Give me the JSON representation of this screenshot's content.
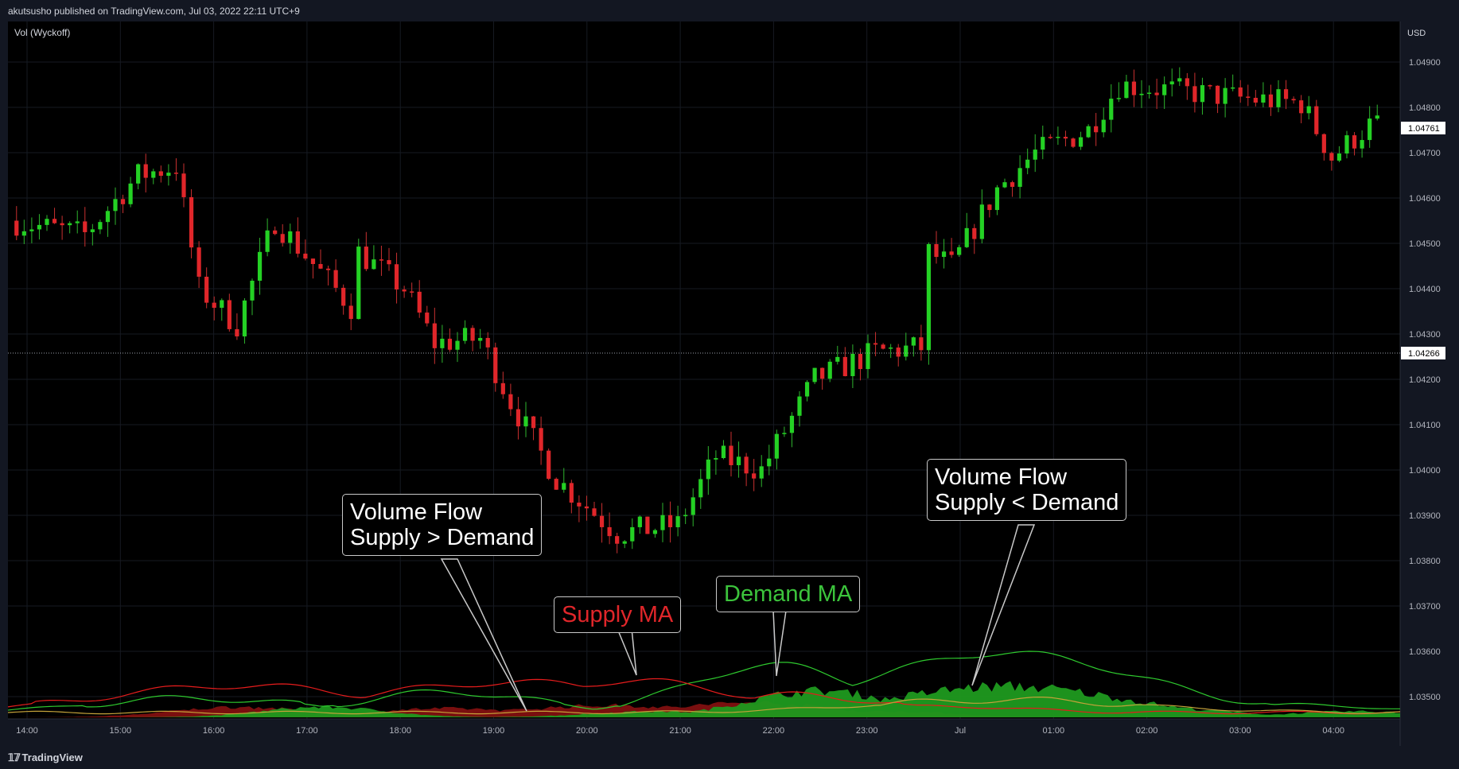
{
  "header": {
    "published": "akutsusho published on TradingView.com, Jul 03, 2022 22:11 UTC+9"
  },
  "footer": {
    "brand": "TradingView"
  },
  "colors": {
    "up": "#24d124",
    "down": "#e0262a",
    "wick_up": "#2eb52e",
    "wick_down": "#c83030",
    "supply": "#e51c1c",
    "demand": "#2ec92e",
    "supply_area": "#7a0f0f",
    "demand_area": "#1f9a1f"
  },
  "annotations": {
    "supply_flow_l1": "Volume Flow",
    "supply_flow_l2": "Supply > Demand",
    "supply_ma": "Supply MA",
    "demand_ma": "Demand MA",
    "demand_flow_l1": "Volume Flow",
    "demand_flow_l2": "Supply < Demand"
  },
  "chart_data": {
    "type": "candlestick",
    "indicator": "Vol (Wyckoff)",
    "currency": "USD",
    "ylim": [
      1.0345,
      1.0495
    ],
    "yticks": [
      "1.04900",
      "1.04800",
      "1.04700",
      "1.04600",
      "1.04500",
      "1.04400",
      "1.04300",
      "1.04200",
      "1.04100",
      "1.04000",
      "1.03900",
      "1.03800",
      "1.03700",
      "1.03600",
      "1.03500"
    ],
    "xticks": [
      "14:00",
      "15:00",
      "16:00",
      "17:00",
      "18:00",
      "19:00",
      "20:00",
      "21:00",
      "22:00",
      "23:00",
      "Jul",
      "01:00",
      "02:00",
      "03:00",
      "04:00"
    ],
    "last_price": "1.04761",
    "crosshair_price": "1.04266",
    "key_points": [
      {
        "t": 0,
        "p": 1.0455
      },
      {
        "t": 10,
        "p": 1.0452
      },
      {
        "t": 17,
        "p": 1.0465
      },
      {
        "t": 22,
        "p": 1.0467
      },
      {
        "t": 25,
        "p": 1.044
      },
      {
        "t": 30,
        "p": 1.0432
      },
      {
        "t": 35,
        "p": 1.0455
      },
      {
        "t": 45,
        "p": 1.0436
      },
      {
        "t": 46,
        "p": 1.0448
      },
      {
        "t": 52,
        "p": 1.044
      },
      {
        "t": 56,
        "p": 1.0428
      },
      {
        "t": 62,
        "p": 1.0429
      },
      {
        "t": 66,
        "p": 1.0415
      },
      {
        "t": 72,
        "p": 1.0398
      },
      {
        "t": 80,
        "p": 1.0386
      },
      {
        "t": 88,
        "p": 1.0388
      },
      {
        "t": 93,
        "p": 1.0403
      },
      {
        "t": 99,
        "p": 1.04
      },
      {
        "t": 106,
        "p": 1.042
      },
      {
        "t": 114,
        "p": 1.0426
      },
      {
        "t": 120,
        "p": 1.0427
      },
      {
        "t": 121,
        "p": 1.0448
      },
      {
        "t": 124,
        "p": 1.0445
      },
      {
        "t": 130,
        "p": 1.0462
      },
      {
        "t": 135,
        "p": 1.047
      },
      {
        "t": 142,
        "p": 1.0475
      },
      {
        "t": 146,
        "p": 1.0485
      },
      {
        "t": 152,
        "p": 1.0484
      },
      {
        "t": 162,
        "p": 1.0482
      },
      {
        "t": 170,
        "p": 1.0481
      },
      {
        "t": 174,
        "p": 1.0469
      },
      {
        "t": 179,
        "p": 1.0476
      }
    ]
  }
}
